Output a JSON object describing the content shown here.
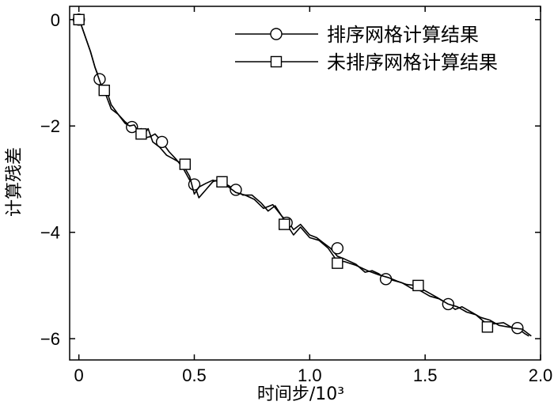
{
  "chart_data": {
    "type": "line",
    "title": "",
    "xlabel": "时间步/10³",
    "ylabel": "计算残差",
    "xlim": [
      -0.04,
      2.0
    ],
    "ylim": [
      -6.4,
      0.25
    ],
    "xticks": [
      0,
      0.5,
      1.0,
      1.5,
      2.0
    ],
    "xtick_labels": [
      "0",
      "0.5",
      "1.0",
      "1.5",
      "2.0"
    ],
    "yticks": [
      0,
      -2,
      -4,
      -6
    ],
    "ytick_labels": [
      "0",
      "−2",
      "−4",
      "−6"
    ],
    "grid": false,
    "legend_position": "top-right",
    "series": [
      {
        "name": "排序网格计算结果",
        "marker": "circle",
        "color": "#000000",
        "x": [
          0.0,
          0.01,
          0.03,
          0.05,
          0.07,
          0.09,
          0.12,
          0.14,
          0.17,
          0.2,
          0.23,
          0.25,
          0.27,
          0.29,
          0.31,
          0.33,
          0.36,
          0.39,
          0.42,
          0.45,
          0.48,
          0.5,
          0.52,
          0.55,
          0.58,
          0.61,
          0.64,
          0.68,
          0.71,
          0.75,
          0.79,
          0.82,
          0.85,
          0.88,
          0.91,
          0.93,
          0.96,
          1.0,
          1.03,
          1.06,
          1.09,
          1.12,
          1.15,
          1.2,
          1.24,
          1.27,
          1.3,
          1.33,
          1.36,
          1.4,
          1.44,
          1.48,
          1.52,
          1.56,
          1.6,
          1.63,
          1.66,
          1.7,
          1.74,
          1.78,
          1.82,
          1.86,
          1.9,
          1.93,
          1.95
        ],
        "y": [
          0.0,
          -0.1,
          -0.35,
          -0.6,
          -0.9,
          -1.12,
          -1.45,
          -1.68,
          -1.78,
          -1.92,
          -2.02,
          -2.08,
          -2.05,
          -2.22,
          -2.2,
          -2.15,
          -2.3,
          -2.48,
          -2.62,
          -2.78,
          -3.02,
          -3.1,
          -3.35,
          -3.2,
          -3.05,
          -3.0,
          -3.1,
          -3.2,
          -3.3,
          -3.3,
          -3.45,
          -3.6,
          -3.5,
          -3.7,
          -3.82,
          -3.95,
          -3.85,
          -4.05,
          -4.1,
          -4.2,
          -4.3,
          -4.45,
          -4.5,
          -4.6,
          -4.75,
          -4.72,
          -4.78,
          -4.88,
          -4.9,
          -4.95,
          -5.05,
          -5.1,
          -5.2,
          -5.25,
          -5.35,
          -5.45,
          -5.4,
          -5.5,
          -5.6,
          -5.65,
          -5.75,
          -5.78,
          -5.8,
          -5.9,
          -5.95
        ],
        "marker_x": [
          0.0,
          0.09,
          0.23,
          0.36,
          0.5,
          0.68,
          0.9,
          1.12,
          1.33,
          1.6,
          1.9
        ],
        "marker_y": [
          0.0,
          -1.12,
          -2.02,
          -2.3,
          -3.1,
          -3.2,
          -3.82,
          -4.3,
          -4.88,
          -5.35,
          -5.8
        ]
      },
      {
        "name": "未排序网格计算结果",
        "marker": "square",
        "color": "#000000",
        "x": [
          0.0,
          0.01,
          0.03,
          0.05,
          0.07,
          0.09,
          0.1,
          0.12,
          0.14,
          0.17,
          0.2,
          0.22,
          0.24,
          0.26,
          0.28,
          0.3,
          0.32,
          0.35,
          0.38,
          0.41,
          0.45,
          0.48,
          0.5,
          0.52,
          0.55,
          0.58,
          0.61,
          0.64,
          0.68,
          0.72,
          0.76,
          0.8,
          0.84,
          0.88,
          0.9,
          0.93,
          0.96,
          1.0,
          1.04,
          1.08,
          1.12,
          1.15,
          1.2,
          1.25,
          1.3,
          1.34,
          1.38,
          1.42,
          1.46,
          1.5,
          1.55,
          1.6,
          1.64,
          1.68,
          1.72,
          1.76,
          1.8,
          1.84,
          1.88,
          1.92,
          1.96
        ],
        "y": [
          0.0,
          -0.1,
          -0.35,
          -0.6,
          -0.9,
          -1.15,
          -1.28,
          -1.33,
          -1.6,
          -1.78,
          -1.95,
          -2.0,
          -1.98,
          -2.12,
          -2.18,
          -2.05,
          -2.3,
          -2.4,
          -2.55,
          -2.62,
          -2.72,
          -2.95,
          -3.28,
          -3.15,
          -3.08,
          -3.02,
          -3.05,
          -3.12,
          -3.25,
          -3.3,
          -3.38,
          -3.55,
          -3.48,
          -3.7,
          -3.85,
          -4.05,
          -3.9,
          -4.1,
          -4.15,
          -4.3,
          -4.55,
          -4.55,
          -4.62,
          -4.72,
          -4.8,
          -4.85,
          -4.92,
          -4.98,
          -5.0,
          -5.1,
          -5.22,
          -5.35,
          -5.4,
          -5.5,
          -5.55,
          -5.7,
          -5.72,
          -5.7,
          -5.8,
          -5.82,
          -5.95
        ],
        "marker_x": [
          0.0,
          0.11,
          0.27,
          0.46,
          0.62,
          0.89,
          1.12,
          1.47,
          1.77
        ],
        "marker_y": [
          0.0,
          -1.33,
          -2.15,
          -2.72,
          -3.05,
          -3.85,
          -4.58,
          -5.0,
          -5.78
        ]
      }
    ]
  }
}
